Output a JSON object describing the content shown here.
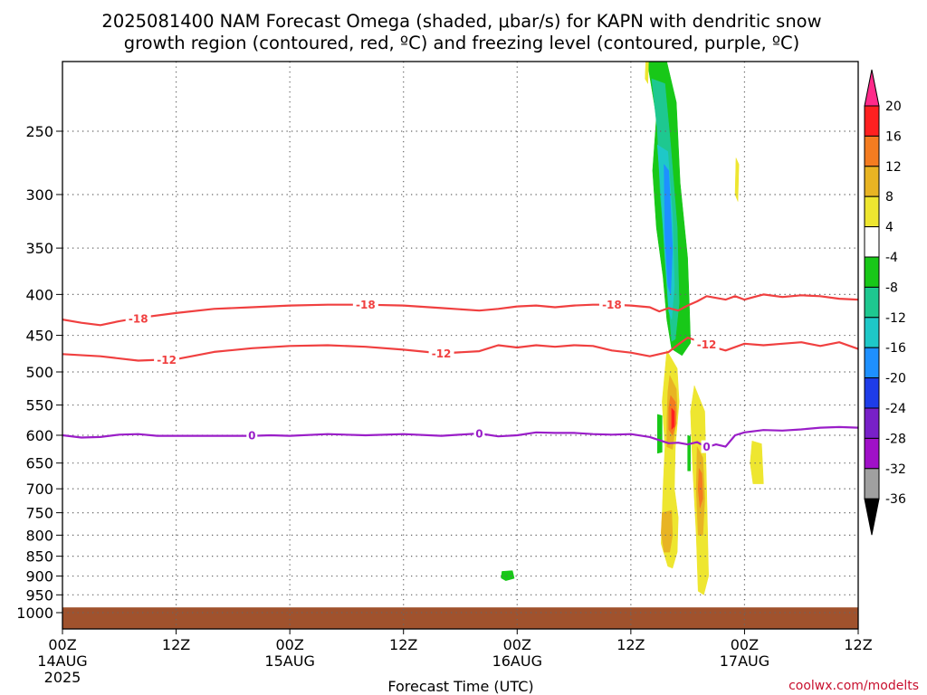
{
  "chart_data": {
    "type": "heatmap",
    "title_line1": "2025081400 NAM Forecast Omega (shaded, μbar/s) for KAPN with dendritic snow",
    "title_line2": "growth region (contoured, red, ºC) and freezing level (contoured, purple, ºC)",
    "xlabel": "Forecast Time (UTC)",
    "credit": "coolwx.com/modelts",
    "x_range_hours": [
      0,
      84
    ],
    "y_scale": "log-pressure",
    "y_range_mb": [
      200,
      1050
    ],
    "x_ticks": [
      {
        "hour": 0,
        "time": "00Z",
        "date": "14AUG",
        "year": "2025"
      },
      {
        "hour": 12,
        "time": "12Z",
        "date": "",
        "year": ""
      },
      {
        "hour": 24,
        "time": "00Z",
        "date": "15AUG",
        "year": ""
      },
      {
        "hour": 36,
        "time": "12Z",
        "date": "",
        "year": ""
      },
      {
        "hour": 48,
        "time": "00Z",
        "date": "16AUG",
        "year": ""
      },
      {
        "hour": 60,
        "time": "12Z",
        "date": "",
        "year": ""
      },
      {
        "hour": 72,
        "time": "00Z",
        "date": "17AUG",
        "year": ""
      },
      {
        "hour": 84,
        "time": "12Z",
        "date": "",
        "year": ""
      }
    ],
    "y_ticks": [
      250,
      300,
      350,
      400,
      450,
      500,
      550,
      600,
      650,
      700,
      750,
      800,
      850,
      900,
      950,
      1000
    ],
    "colorbar": {
      "ticks": [
        "20",
        "16",
        "12",
        "8",
        "4",
        "-4",
        "-8",
        "-12",
        "-16",
        "-20",
        "-24",
        "-28",
        "-32",
        "-36"
      ],
      "bins": [
        "#ff2a8a",
        "#ff2020",
        "#f47c20",
        "#e8b423",
        "#eee630",
        "#ffffff",
        "#18c818",
        "#1ec890",
        "#1ec8c8",
        "#1e90ff",
        "#1e3ce8",
        "#7820c8",
        "#a010c8",
        "#a0a0a0",
        "#000000"
      ]
    },
    "temp_contours": [
      {
        "value": -18,
        "label": "-18",
        "color": "#f04040",
        "points": [
          [
            0,
            430
          ],
          [
            2,
            434
          ],
          [
            4,
            437
          ],
          [
            6,
            432
          ],
          [
            8,
            428
          ],
          [
            12,
            422
          ],
          [
            16,
            417
          ],
          [
            20,
            415
          ],
          [
            24,
            413
          ],
          [
            28,
            412
          ],
          [
            32,
            412
          ],
          [
            36,
            413
          ],
          [
            40,
            416
          ],
          [
            44,
            419
          ],
          [
            46,
            417
          ],
          [
            48,
            414
          ],
          [
            50,
            413
          ],
          [
            52,
            415
          ],
          [
            54,
            413
          ],
          [
            56,
            412
          ],
          [
            58,
            412
          ],
          [
            60,
            413
          ],
          [
            62,
            415
          ],
          [
            63,
            420
          ],
          [
            64,
            416
          ],
          [
            65,
            419
          ],
          [
            66,
            413
          ],
          [
            67,
            408
          ],
          [
            68,
            402
          ],
          [
            70,
            406
          ],
          [
            71,
            402
          ],
          [
            72,
            406
          ],
          [
            73,
            403
          ],
          [
            74,
            400
          ],
          [
            76,
            403
          ],
          [
            78,
            401
          ],
          [
            80,
            402
          ],
          [
            82,
            405
          ],
          [
            84,
            406
          ]
        ],
        "labels": [
          [
            8,
            429
          ],
          [
            32,
            412
          ],
          [
            58,
            412
          ]
        ]
      },
      {
        "value": -12,
        "label": "-12",
        "color": "#f04040",
        "points": [
          [
            0,
            475
          ],
          [
            4,
            478
          ],
          [
            8,
            484
          ],
          [
            12,
            482
          ],
          [
            16,
            472
          ],
          [
            20,
            467
          ],
          [
            24,
            464
          ],
          [
            28,
            463
          ],
          [
            32,
            465
          ],
          [
            36,
            469
          ],
          [
            40,
            474
          ],
          [
            44,
            471
          ],
          [
            46,
            463
          ],
          [
            48,
            466
          ],
          [
            50,
            463
          ],
          [
            52,
            465
          ],
          [
            54,
            463
          ],
          [
            56,
            464
          ],
          [
            58,
            470
          ],
          [
            60,
            473
          ],
          [
            62,
            478
          ],
          [
            64,
            472
          ],
          [
            65,
            462
          ],
          [
            66,
            453
          ],
          [
            67,
            457
          ],
          [
            68,
            463
          ],
          [
            70,
            470
          ],
          [
            72,
            461
          ],
          [
            74,
            463
          ],
          [
            76,
            461
          ],
          [
            78,
            459
          ],
          [
            80,
            464
          ],
          [
            82,
            459
          ],
          [
            84,
            468
          ]
        ],
        "labels": [
          [
            11,
            483
          ],
          [
            40,
            474
          ],
          [
            68,
            462
          ]
        ]
      },
      {
        "value": 0,
        "label": "0",
        "color": "#9a1ec8",
        "points": [
          [
            0,
            600
          ],
          [
            2,
            604
          ],
          [
            4,
            603
          ],
          [
            6,
            599
          ],
          [
            8,
            598
          ],
          [
            10,
            601
          ],
          [
            12,
            601
          ],
          [
            16,
            601
          ],
          [
            20,
            601
          ],
          [
            22,
            600
          ],
          [
            24,
            601
          ],
          [
            28,
            598
          ],
          [
            32,
            600
          ],
          [
            36,
            598
          ],
          [
            40,
            601
          ],
          [
            44,
            597
          ],
          [
            46,
            602
          ],
          [
            48,
            600
          ],
          [
            50,
            595
          ],
          [
            52,
            596
          ],
          [
            54,
            596
          ],
          [
            56,
            598
          ],
          [
            58,
            599
          ],
          [
            60,
            598
          ],
          [
            62,
            603
          ],
          [
            64,
            614
          ],
          [
            65,
            613
          ],
          [
            66,
            616
          ],
          [
            67,
            612
          ],
          [
            68,
            621
          ],
          [
            69,
            616
          ],
          [
            70,
            620
          ],
          [
            71,
            600
          ],
          [
            72,
            595
          ],
          [
            74,
            591
          ],
          [
            76,
            592
          ],
          [
            78,
            590
          ],
          [
            80,
            587
          ],
          [
            82,
            586
          ],
          [
            84,
            587
          ]
        ],
        "labels": [
          [
            20,
            600
          ],
          [
            44,
            597
          ],
          [
            68,
            620
          ]
        ]
      }
    ],
    "omega_blobs": [
      {
        "color": "#18c818",
        "points": [
          [
            61.4,
            200
          ],
          [
            63.6,
            200
          ],
          [
            64.8,
            230
          ],
          [
            65.2,
            290
          ],
          [
            66,
            360
          ],
          [
            66.2,
            420
          ],
          [
            66.3,
            460
          ],
          [
            65.4,
            477
          ],
          [
            64.3,
            468
          ],
          [
            63.8,
            430
          ],
          [
            63.4,
            380
          ],
          [
            62.7,
            330
          ],
          [
            62.3,
            280
          ],
          [
            62.7,
            240
          ],
          [
            61.9,
            210
          ]
        ]
      },
      {
        "color": "#1ec890",
        "points": [
          [
            62.2,
            215
          ],
          [
            63.6,
            218
          ],
          [
            64.2,
            260
          ],
          [
            64.9,
            330
          ],
          [
            65.1,
            410
          ],
          [
            64.7,
            455
          ],
          [
            64.3,
            458
          ],
          [
            64.0,
            410
          ],
          [
            63.6,
            350
          ],
          [
            63.1,
            300
          ],
          [
            62.8,
            250
          ]
        ]
      },
      {
        "color": "#1ec8c8",
        "points": [
          [
            62.8,
            260
          ],
          [
            63.9,
            265
          ],
          [
            64.4,
            320
          ],
          [
            64.6,
            390
          ],
          [
            64.3,
            430
          ],
          [
            64.0,
            420
          ],
          [
            63.6,
            360
          ],
          [
            63.2,
            300
          ]
        ]
      },
      {
        "color": "#1e90ff",
        "points": [
          [
            63.5,
            275
          ],
          [
            64.0,
            280
          ],
          [
            64.4,
            350
          ],
          [
            64.2,
            400
          ],
          [
            63.9,
            390
          ],
          [
            63.6,
            340
          ]
        ]
      },
      {
        "color": "#eee630",
        "points": [
          [
            61.6,
            200
          ],
          [
            61.9,
            200
          ],
          [
            61.8,
            218
          ],
          [
            61.5,
            215
          ]
        ]
      },
      {
        "color": "#eee630",
        "points": [
          [
            71.1,
            270
          ],
          [
            71.4,
            275
          ],
          [
            71.3,
            306
          ],
          [
            71.0,
            300
          ]
        ]
      },
      {
        "color": "#eee630",
        "points": [
          [
            63.8,
            470
          ],
          [
            64.9,
            495
          ],
          [
            65.1,
            545
          ],
          [
            64.7,
            620
          ],
          [
            64.6,
            700
          ],
          [
            65.0,
            760
          ],
          [
            64.9,
            840
          ],
          [
            64.4,
            880
          ],
          [
            63.9,
            875
          ],
          [
            63.2,
            820
          ],
          [
            63.4,
            700
          ],
          [
            63.6,
            620
          ],
          [
            63.3,
            545
          ]
        ]
      },
      {
        "color": "#e8b423",
        "points": [
          [
            64.1,
            505
          ],
          [
            64.8,
            525
          ],
          [
            64.9,
            560
          ],
          [
            64.4,
            625
          ],
          [
            63.8,
            620
          ],
          [
            63.8,
            580
          ],
          [
            63.9,
            530
          ]
        ]
      },
      {
        "color": "#f47c20",
        "points": [
          [
            64.2,
            535
          ],
          [
            64.7,
            545
          ],
          [
            64.8,
            580
          ],
          [
            64.4,
            600
          ],
          [
            64.0,
            590
          ],
          [
            64.0,
            555
          ]
        ]
      },
      {
        "color": "#ff2020",
        "points": [
          [
            64.3,
            555
          ],
          [
            64.6,
            560
          ],
          [
            64.6,
            585
          ],
          [
            64.3,
            590
          ]
        ]
      },
      {
        "color": "#e8b423",
        "points": [
          [
            63.3,
            750
          ],
          [
            64.3,
            745
          ],
          [
            64.4,
            800
          ],
          [
            64.1,
            840
          ],
          [
            63.5,
            840
          ],
          [
            63.2,
            795
          ]
        ]
      },
      {
        "color": "#eee630",
        "points": [
          [
            66.7,
            520
          ],
          [
            67.8,
            560
          ],
          [
            68.0,
            700
          ],
          [
            68.2,
            900
          ],
          [
            67.7,
            950
          ],
          [
            67.1,
            940
          ],
          [
            66.9,
            800
          ],
          [
            66.5,
            650
          ],
          [
            66.3,
            560
          ]
        ]
      },
      {
        "color": "#e8b423",
        "points": [
          [
            67.0,
            620
          ],
          [
            67.6,
            640
          ],
          [
            67.8,
            720
          ],
          [
            67.6,
            800
          ],
          [
            67.1,
            800
          ],
          [
            66.9,
            700
          ]
        ]
      },
      {
        "color": "#f47c20",
        "points": [
          [
            67.2,
            660
          ],
          [
            67.5,
            670
          ],
          [
            67.6,
            720
          ],
          [
            67.3,
            740
          ],
          [
            67.1,
            700
          ]
        ]
      },
      {
        "color": "#eee630",
        "points": [
          [
            72.8,
            610
          ],
          [
            73.8,
            615
          ],
          [
            74.0,
            690
          ],
          [
            72.9,
            690
          ],
          [
            72.6,
            650
          ]
        ]
      },
      {
        "color": "#18c818",
        "points": [
          [
            62.8,
            565
          ],
          [
            63.3,
            567
          ],
          [
            63.3,
            630
          ],
          [
            62.8,
            632
          ]
        ]
      },
      {
        "color": "#18c818",
        "points": [
          [
            66.0,
            600
          ],
          [
            66.3,
            602
          ],
          [
            66.3,
            665
          ],
          [
            66.0,
            665
          ]
        ]
      },
      {
        "color": "#18c818",
        "points": [
          [
            46.4,
            888
          ],
          [
            47.5,
            886
          ],
          [
            47.7,
            906
          ],
          [
            46.8,
            912
          ],
          [
            46.3,
            905
          ]
        ]
      }
    ],
    "terrain": {
      "color": "#a0522d",
      "top_mb": 985
    }
  }
}
